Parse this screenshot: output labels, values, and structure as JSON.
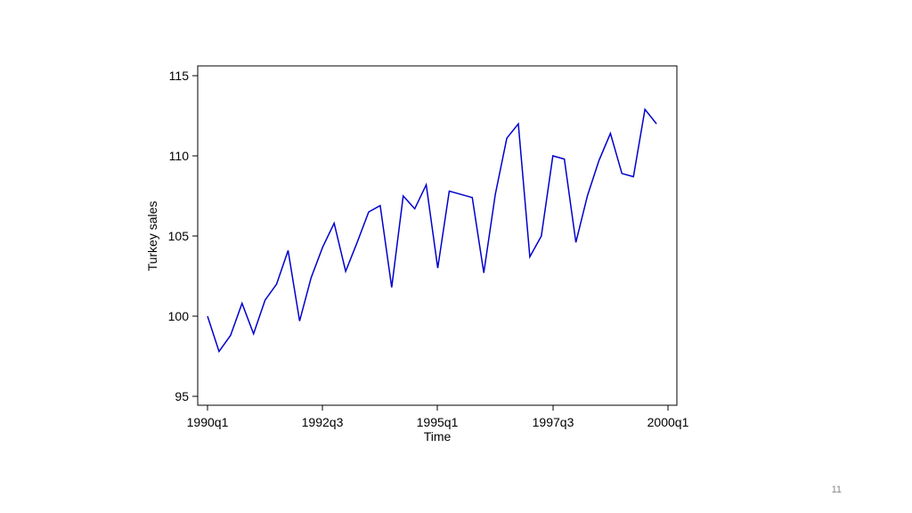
{
  "slide": {
    "page_number": "11"
  },
  "chart_data": {
    "type": "line",
    "title": "",
    "xlabel": "Time",
    "ylabel": "Turkey sales",
    "ylim": [
      95,
      115
    ],
    "y_ticks": [
      95,
      100,
      105,
      110,
      115
    ],
    "x_ticks": [
      "1990q1",
      "1992q3",
      "1995q1",
      "1997q3",
      "2000q1"
    ],
    "grid": false,
    "series_color": "#0000cc",
    "x": [
      "1990q1",
      "1990q2",
      "1990q3",
      "1990q4",
      "1991q1",
      "1991q2",
      "1991q3",
      "1991q4",
      "1992q1",
      "1992q2",
      "1992q3",
      "1992q4",
      "1993q1",
      "1993q2",
      "1993q3",
      "1993q4",
      "1994q1",
      "1994q2",
      "1994q3",
      "1994q4",
      "1995q1",
      "1995q2",
      "1995q3",
      "1995q4",
      "1996q1",
      "1996q2",
      "1996q3",
      "1996q4",
      "1997q1",
      "1997q2",
      "1997q3",
      "1997q4",
      "1998q1",
      "1998q2",
      "1998q3",
      "1998q4",
      "1999q1",
      "1999q2",
      "1999q3",
      "1999q4"
    ],
    "series": [
      {
        "values": [
          100.0,
          97.8,
          98.8,
          100.8,
          98.9,
          101.0,
          102.0,
          104.1,
          99.7,
          102.4,
          104.3,
          105.8,
          102.8,
          104.6,
          106.5,
          106.9,
          101.8,
          107.5,
          106.7,
          108.2,
          103.0,
          107.8,
          107.6,
          107.4,
          102.7,
          107.6,
          111.1,
          112.0,
          103.7,
          105.0,
          110.0,
          109.8,
          104.6,
          107.5,
          109.7,
          111.4,
          108.9,
          108.7,
          112.9,
          112.0
        ]
      }
    ]
  }
}
